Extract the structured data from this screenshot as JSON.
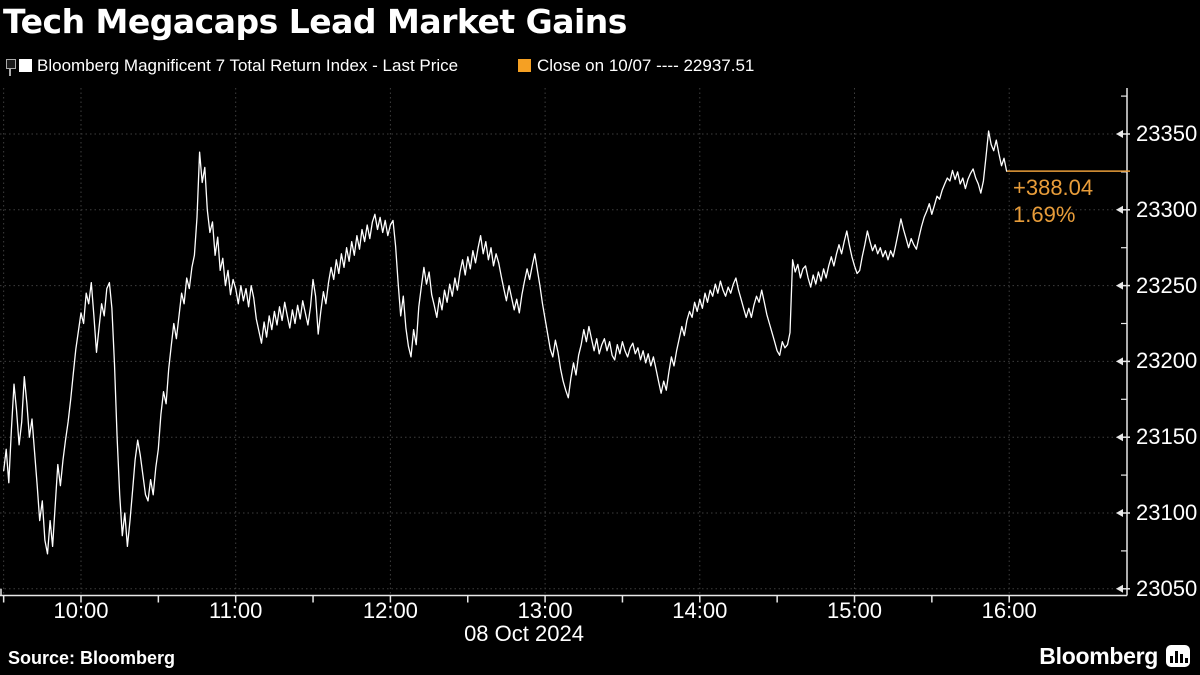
{
  "title": "Tech Megacaps Lead Market Gains",
  "theme": {
    "background": "#000000",
    "text": "#ffffff",
    "grid": "#3e3e3e",
    "axis": "#e8e8e8",
    "line": "#ffffff",
    "orange": "#e89d3a",
    "legend_orange": "#f5a023"
  },
  "legend": {
    "series1_label": "Bloomberg Magnificent 7 Total Return Index - Last Price",
    "series1_color": "#ffffff",
    "series2_label": "Close on 10/07 ---- 22937.51",
    "series2_color": "#f5a023"
  },
  "annotation": {
    "change": "+388.04",
    "percent": "1.69%"
  },
  "footer": {
    "source": "Source: Bloomberg",
    "brand": "Bloomberg"
  },
  "chart_data": {
    "type": "line",
    "title": "Tech Megacaps Lead Market Gains",
    "x_axis": {
      "session_start": "09:30",
      "session_end": "16:00",
      "interval_minutes": 1,
      "tick_hours": [
        10,
        11,
        12,
        13,
        14,
        15,
        16
      ],
      "tick_labels": [
        "10:00",
        "11:00",
        "12:00",
        "13:00",
        "14:00",
        "15:00",
        "16:00"
      ],
      "minor_tick_minutes": 30,
      "date_label": "08 Oct 2024"
    },
    "y_axis": {
      "tick_values": [
        23050,
        23100,
        23150,
        23200,
        23250,
        23300,
        23350
      ],
      "minor_tick_values": [
        23075,
        23125,
        23175,
        23225,
        23275,
        23325,
        23375
      ],
      "range": [
        23050,
        23380
      ],
      "grid": true
    },
    "last_price": 23325.55,
    "prev_close": {
      "label": "Close on 10/07",
      "value": 22937.51
    },
    "change_abs": 388.04,
    "change_pct": 1.69,
    "series": [
      {
        "name": "Bloomberg Magnificent 7 Total Return Index - Last Price",
        "color": "#ffffff",
        "start": "09:30",
        "interval_minutes": 1,
        "values": [
          23128,
          23142,
          23120,
          23155,
          23185,
          23168,
          23145,
          23160,
          23190,
          23172,
          23150,
          23162,
          23140,
          23118,
          23095,
          23108,
          23082,
          23073,
          23095,
          23078,
          23105,
          23132,
          23118,
          23135,
          23148,
          23160,
          23175,
          23192,
          23208,
          23220,
          23232,
          23225,
          23245,
          23238,
          23252,
          23230,
          23206,
          23222,
          23238,
          23230,
          23248,
          23252,
          23235,
          23198,
          23150,
          23112,
          23085,
          23100,
          23078,
          23095,
          23115,
          23135,
          23148,
          23138,
          23125,
          23112,
          23108,
          23122,
          23112,
          23130,
          23142,
          23165,
          23180,
          23172,
          23195,
          23210,
          23225,
          23215,
          23230,
          23245,
          23238,
          23255,
          23248,
          23262,
          23270,
          23295,
          23338,
          23318,
          23328,
          23300,
          23285,
          23292,
          23270,
          23282,
          23260,
          23268,
          23250,
          23260,
          23244,
          23254,
          23248,
          23238,
          23250,
          23240,
          23248,
          23236,
          23250,
          23242,
          23228,
          23220,
          23212,
          23226,
          23216,
          23230,
          23221,
          23233,
          23224,
          23236,
          23227,
          23239,
          23230,
          23222,
          23234,
          23225,
          23237,
          23228,
          23240,
          23232,
          23224,
          23236,
          23254,
          23243,
          23218,
          23233,
          23246,
          23238,
          23252,
          23262,
          23254,
          23267,
          23258,
          23271,
          23262,
          23275,
          23266,
          23279,
          23270,
          23283,
          23274,
          23287,
          23279,
          23290,
          23281,
          23292,
          23297,
          23287,
          23295,
          23285,
          23293,
          23283,
          23290,
          23293,
          23276,
          23252,
          23230,
          23243,
          23222,
          23210,
          23203,
          23221,
          23211,
          23236,
          23249,
          23262,
          23251,
          23259,
          23244,
          23237,
          23229,
          23242,
          23234,
          23247,
          23239,
          23251,
          23243,
          23255,
          23247,
          23259,
          23267,
          23257,
          23269,
          23261,
          23273,
          23265,
          23275,
          23283,
          23271,
          23279,
          23267,
          23275,
          23263,
          23271,
          23265,
          23256,
          23248,
          23240,
          23250,
          23242,
          23234,
          23241,
          23232,
          23244,
          23253,
          23261,
          23254,
          23263,
          23271,
          23260,
          23250,
          23238,
          23228,
          23218,
          23208,
          23203,
          23214,
          23206,
          23195,
          23187,
          23181,
          23176,
          23189,
          23199,
          23191,
          23204,
          23211,
          23221,
          23213,
          23223,
          23215,
          23207,
          23215,
          23205,
          23211,
          23215,
          23207,
          23213,
          23204,
          23201,
          23211,
          23205,
          23213,
          23207,
          23203,
          23209,
          23212,
          23205,
          23209,
          23201,
          23207,
          23199,
          23205,
          23197,
          23203,
          23195,
          23187,
          23179,
          23187,
          23181,
          23193,
          23203,
          23197,
          23207,
          23215,
          23223,
          23217,
          23227,
          23233,
          23229,
          23239,
          23233,
          23241,
          23235,
          23245,
          23239,
          23247,
          23243,
          23251,
          23245,
          23253,
          23247,
          23243,
          23249,
          23245,
          23251,
          23255,
          23247,
          23241,
          23235,
          23229,
          23235,
          23229,
          23237,
          23243,
          23239,
          23247,
          23239,
          23231,
          23225,
          23219,
          23213,
          23207,
          23204,
          23213,
          23209,
          23211,
          23219,
          23267,
          23259,
          23264,
          23255,
          23261,
          23263,
          23255,
          23249,
          23257,
          23251,
          23259,
          23253,
          23261,
          23255,
          23263,
          23269,
          23263,
          23271,
          23277,
          23271,
          23279,
          23286,
          23277,
          23269,
          23263,
          23258,
          23260,
          23269,
          23277,
          23286,
          23279,
          23273,
          23277,
          23271,
          23275,
          23269,
          23273,
          23267,
          23273,
          23269,
          23277,
          23285,
          23294,
          23287,
          23281,
          23275,
          23281,
          23277,
          23274,
          23282,
          23289,
          23295,
          23299,
          23304,
          23297,
          23303,
          23309,
          23307,
          23313,
          23317,
          23321,
          23319,
          23326,
          23320,
          23325,
          23317,
          23321,
          23314,
          23320,
          23324,
          23327,
          23321,
          23317,
          23311,
          23319,
          23335,
          23352,
          23343,
          23339,
          23346,
          23337,
          23329,
          23334,
          23325.55
        ]
      }
    ]
  }
}
